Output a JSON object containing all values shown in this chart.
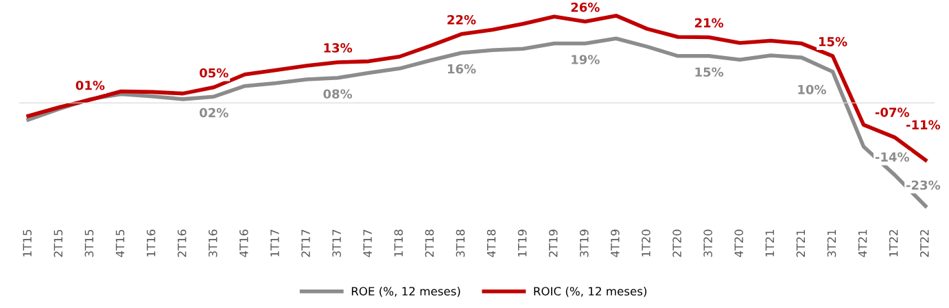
{
  "chart_data": {
    "type": "line",
    "categories": [
      "1T15",
      "2T15",
      "3T15",
      "4T15",
      "1T16",
      "2T16",
      "3T16",
      "4T16",
      "1T17",
      "2T17",
      "3T17",
      "4T17",
      "1T18",
      "2T18",
      "3T18",
      "4T18",
      "1T19",
      "2T19",
      "3T19",
      "4T19",
      "1T20",
      "2T20",
      "3T20",
      "4T20",
      "1T21",
      "2T21",
      "3T21",
      "4T21",
      "1T22",
      "2T22"
    ],
    "series": [
      {
        "name": "ROE (%, 12 meses)",
        "color": "#8c8c8c",
        "values": [
          -5.4,
          -1.9,
          1.2,
          2.8,
          2.1,
          1.2,
          2,
          5.4,
          6.3,
          7.5,
          8,
          9.6,
          11,
          13.6,
          16,
          16.9,
          17.3,
          19,
          19,
          20.6,
          18,
          15,
          15,
          13.8,
          15.2,
          14.5,
          10,
          -14,
          -23,
          -33
        ],
        "value_labels": [
          null,
          null,
          null,
          null,
          null,
          null,
          "02%",
          null,
          null,
          null,
          "08%",
          null,
          null,
          null,
          "16%",
          null,
          null,
          null,
          "19%",
          null,
          null,
          null,
          "15%",
          null,
          null,
          null,
          "10%",
          "-14%",
          "-23%",
          null
        ]
      },
      {
        "name": "ROIC (%, 12 meses)",
        "color": "#c00000",
        "values": [
          -4.2,
          -1.4,
          1,
          3.7,
          3.5,
          3,
          5,
          9.1,
          10.5,
          11.9,
          13,
          13.3,
          14.8,
          18.3,
          22,
          23.4,
          25.3,
          27.6,
          26,
          27.9,
          23.7,
          21.1,
          21,
          19.2,
          19.9,
          19,
          15,
          -7,
          -11,
          -18.3
        ],
        "value_labels": [
          null,
          null,
          "01%",
          null,
          null,
          null,
          "05%",
          null,
          null,
          null,
          "13%",
          null,
          null,
          null,
          "22%",
          null,
          null,
          null,
          "26%",
          null,
          null,
          null,
          "21%",
          null,
          null,
          null,
          "15%",
          "-07%",
          "-11%",
          null
        ]
      }
    ],
    "legend": "bottom",
    "marker": "none",
    "line_style": "solid",
    "grid": false
  }
}
